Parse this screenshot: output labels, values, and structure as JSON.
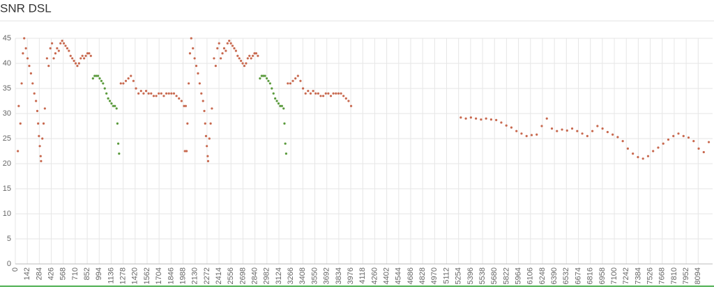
{
  "chart_data": {
    "type": "scatter",
    "title": "SNR DSL",
    "xlim": [
      0,
      8265
    ],
    "ylim": [
      0,
      45
    ],
    "yticks": [
      0,
      5,
      10,
      15,
      20,
      25,
      30,
      35,
      40,
      45
    ],
    "xticks": [
      0,
      142,
      284,
      426,
      568,
      710,
      852,
      994,
      1136,
      1278,
      1420,
      1562,
      1704,
      1846,
      1988,
      2130,
      2272,
      2414,
      2556,
      2698,
      2840,
      2982,
      3124,
      3266,
      3408,
      3550,
      3692,
      3834,
      3976,
      4118,
      4260,
      4402,
      4544,
      4686,
      4828,
      4970,
      5112,
      5254,
      5396,
      5538,
      5680,
      5822,
      5964,
      6106,
      6248,
      6390,
      6532,
      6674,
      6816,
      6958,
      7100,
      7242,
      7384,
      7526,
      7668,
      7810,
      7952,
      8094
    ],
    "grid": true,
    "series": [
      {
        "color": "#c8694f",
        "x": [
          30,
          40,
          60,
          75,
          90,
          105,
          125,
          145,
          165,
          185,
          205,
          225,
          245,
          260,
          270,
          280,
          290,
          300,
          305,
          320,
          335,
          350,
          375,
          395,
          415,
          435,
          455,
          475,
          495,
          515,
          535,
          555,
          575,
          595,
          615,
          635,
          655,
          675,
          695,
          715,
          735,
          755,
          775,
          795,
          815,
          835,
          855,
          875,
          895
        ],
        "values": [
          22.5,
          31.5,
          28,
          36,
          42,
          45,
          43,
          41,
          39.5,
          38,
          36,
          34,
          32.5,
          30.5,
          28,
          25.5,
          23.5,
          21.5,
          20.5,
          25,
          28,
          31,
          41,
          39.5,
          43,
          44,
          41,
          42,
          43,
          42.5,
          44,
          44.5,
          44,
          43.5,
          43,
          42.5,
          41.5,
          41,
          40.5,
          40,
          39.5,
          40,
          41,
          41.5,
          41,
          41.5,
          42,
          42,
          41.5
        ]
      },
      {
        "color": "#5a9a3c",
        "x": [
          920,
          940,
          960,
          980,
          1000,
          1020,
          1040,
          1060,
          1080,
          1100,
          1120,
          1140,
          1160,
          1180,
          1200,
          1210,
          1220,
          1230
        ],
        "values": [
          37,
          37.5,
          37.5,
          37.5,
          37,
          36.5,
          36,
          35,
          34,
          33,
          32.5,
          32,
          31.5,
          31.5,
          31,
          28,
          24,
          22
        ]
      },
      {
        "color": "#c8694f",
        "x": [
          1250,
          1280,
          1310,
          1340,
          1370,
          1400,
          1430,
          1460,
          1490,
          1520,
          1550,
          1580,
          1610,
          1640,
          1670,
          1700,
          1730,
          1760,
          1790,
          1820,
          1850,
          1880,
          1910,
          1940,
          1970,
          2000,
          2030
        ],
        "values": [
          36,
          36,
          36.5,
          37,
          37.5,
          36.5,
          35,
          34,
          34.5,
          34,
          34.5,
          34,
          34,
          33.5,
          33.5,
          34,
          34,
          33.5,
          34,
          34,
          34,
          34,
          33.5,
          33,
          32.5,
          31.5,
          22.5
        ]
      },
      {
        "color": "#c8694f",
        "x": [
          2010,
          2020,
          2040,
          2055,
          2070,
          2085,
          2105,
          2125,
          2145,
          2165,
          2185,
          2205,
          2225,
          2240,
          2250,
          2260,
          2270,
          2280,
          2285,
          2300,
          2315,
          2330,
          2355,
          2375,
          2395,
          2415,
          2435,
          2455,
          2475,
          2495,
          2515,
          2535,
          2555,
          2575,
          2595,
          2615,
          2635,
          2655,
          2675,
          2695,
          2715,
          2735,
          2755,
          2775,
          2795,
          2815,
          2835,
          2855,
          2875
        ],
        "values": [
          22.5,
          31.5,
          28,
          36,
          42,
          45,
          43,
          41,
          39.5,
          38,
          36,
          34,
          32.5,
          30.5,
          28,
          25.5,
          23.5,
          21.5,
          20.5,
          25,
          28,
          31,
          41,
          39.5,
          43,
          44,
          41,
          42,
          43,
          42.5,
          44,
          44.5,
          44,
          43.5,
          43,
          42.5,
          41.5,
          41,
          40.5,
          40,
          39.5,
          40,
          41,
          41.5,
          41,
          41.5,
          42,
          42,
          41.5
        ]
      },
      {
        "color": "#5a9a3c",
        "x": [
          2900,
          2920,
          2940,
          2960,
          2980,
          3000,
          3020,
          3040,
          3060,
          3080,
          3100,
          3120,
          3140,
          3160,
          3180,
          3190,
          3200,
          3210
        ],
        "values": [
          37,
          37.5,
          37.5,
          37.5,
          37,
          36.5,
          36,
          35,
          34,
          33,
          32.5,
          32,
          31.5,
          31.5,
          31,
          28,
          24,
          22
        ]
      },
      {
        "color": "#c8694f",
        "x": [
          3230,
          3260,
          3290,
          3320,
          3350,
          3380,
          3410,
          3440,
          3470,
          3500,
          3530,
          3560,
          3590,
          3620,
          3650,
          3680,
          3710,
          3740,
          3770,
          3800,
          3830,
          3860,
          3890,
          3920,
          3950,
          3980
        ],
        "values": [
          36,
          36,
          36.5,
          37,
          37.5,
          36.5,
          35,
          34,
          34.5,
          34,
          34.5,
          34,
          34,
          33.5,
          33.5,
          34,
          34,
          33.5,
          34,
          34,
          34,
          34,
          33.5,
          33,
          32.5,
          31.5
        ]
      },
      {
        "color": "#c8694f",
        "x": [
          5280,
          5340,
          5400,
          5460,
          5520,
          5580,
          5640,
          5700,
          5760,
          5820,
          5880,
          5940,
          6000,
          6060,
          6120,
          6180,
          6240,
          6300,
          6360,
          6420,
          6480,
          6540,
          6600,
          6660,
          6720,
          6780,
          6840,
          6900,
          6960,
          7020,
          7080,
          7140,
          7200,
          7260,
          7320,
          7380,
          7440,
          7500,
          7560,
          7620,
          7680,
          7740,
          7800,
          7860,
          7920,
          7980,
          8040,
          8100,
          8160,
          8220
        ],
        "values": [
          29.2,
          29,
          29.2,
          29,
          28.8,
          29,
          28.8,
          28.7,
          28.2,
          27.6,
          27.2,
          26.5,
          26,
          25.5,
          25.7,
          25.8,
          27.5,
          29,
          27,
          26.5,
          26.8,
          26.6,
          27,
          26.5,
          26,
          25.5,
          26.5,
          27.5,
          27,
          26.3,
          25.8,
          25.3,
          24.5,
          23,
          22,
          21.3,
          21,
          21.5,
          22.5,
          23.2,
          24,
          24.8,
          25.5,
          26,
          25.5,
          25.2,
          24.5,
          23,
          22.3,
          24.3
        ]
      }
    ]
  }
}
